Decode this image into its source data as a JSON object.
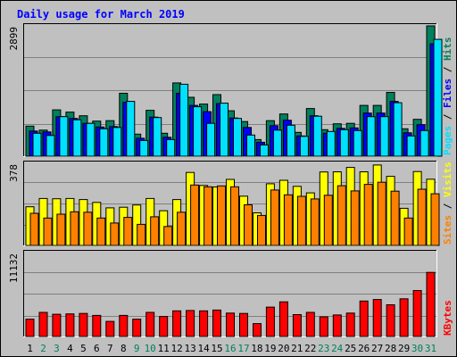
{
  "chart_data": {
    "title": "Daily usage for March 2019",
    "days": [
      "1",
      "2",
      "3",
      "4",
      "5",
      "6",
      "7",
      "8",
      "9",
      "10",
      "11",
      "12",
      "13",
      "14",
      "15",
      "16",
      "17",
      "18",
      "19",
      "20",
      "21",
      "22",
      "23",
      "24",
      "25",
      "26",
      "27",
      "28",
      "29",
      "30",
      "31"
    ],
    "weekend_days": [
      "2",
      "3",
      "9",
      "10",
      "16",
      "17",
      "23",
      "24",
      "30",
      "31"
    ],
    "panels": [
      {
        "type": "bar",
        "max_label": "2899",
        "ymax": 2899,
        "legend": [
          "Pages",
          "Files",
          "Hits"
        ],
        "series": [
          {
            "name": "Hits",
            "color": "#00805c",
            "values": [
              670,
              580,
              1030,
              980,
              900,
              780,
              790,
              1400,
              490,
              1020,
              510,
              1630,
              1310,
              1160,
              1370,
              1010,
              770,
              370,
              790,
              940,
              530,
              1060,
              590,
              720,
              730,
              1130,
              1130,
              1420,
              610,
              820,
              2899
            ]
          },
          {
            "name": "Files",
            "color": "#0000ff",
            "values": [
              560,
              540,
              880,
              840,
              730,
              650,
              660,
              1200,
              400,
              870,
              420,
              1400,
              1130,
              990,
              1170,
              850,
              640,
              310,
              680,
              800,
              450,
              900,
              510,
              620,
              630,
              960,
              960,
              1220,
              520,
              700,
              2500
            ]
          },
          {
            "name": "Pages",
            "color": "#00e0ff",
            "values": [
              510,
              460,
              880,
              810,
              730,
              610,
              640,
              1220,
              350,
              860,
              370,
              1600,
              1100,
              730,
              1180,
              840,
              470,
              250,
              580,
              690,
              440,
              890,
              550,
              590,
              570,
              880,
              880,
              1190,
              450,
              570,
              2600
            ]
          }
        ]
      },
      {
        "type": "bar",
        "max_label": "378",
        "ymax": 378,
        "legend": [
          "Sites",
          "Visits"
        ],
        "series": [
          {
            "name": "Visits",
            "color": "#ffff00",
            "values": [
              178,
              216,
              215,
              216,
              211,
              198,
              173,
              176,
              186,
              216,
              160,
              211,
              336,
              276,
              269,
              304,
              227,
              150,
              284,
              300,
              272,
              242,
              338,
              339,
              359,
              339,
              370,
              318,
              171,
              340,
              305
            ]
          },
          {
            "name": "Sites",
            "color": "#ff8000",
            "values": [
              148,
              126,
              144,
              155,
              153,
              126,
              103,
              129,
              97,
              132,
              87,
              153,
              278,
              270,
              274,
              270,
              187,
              138,
              255,
              233,
              226,
              214,
              231,
              275,
              251,
              281,
              291,
              250,
              126,
              259,
              238
            ]
          }
        ]
      },
      {
        "type": "bar",
        "max_label": "11132",
        "ymax": 11132,
        "legend": [
          "KBytes"
        ],
        "series": [
          {
            "name": "KBytes",
            "color": "#ff0000",
            "values": [
              2300,
              3200,
              2950,
              3000,
              3050,
              2800,
              2000,
              2800,
              2300,
              3200,
              2650,
              3400,
              3450,
              3400,
              3500,
              3100,
              3050,
              1700,
              3900,
              4600,
              2900,
              3200,
              2600,
              2850,
              3100,
              4700,
              4900,
              4200,
              5000,
              6100,
              8500
            ]
          }
        ]
      }
    ]
  },
  "colors": {
    "background": "#c0c0c0",
    "plot": "#c0c0c0",
    "title": "#0000ff",
    "weekday_label": "#000000",
    "weekend_label": "#00805c"
  }
}
